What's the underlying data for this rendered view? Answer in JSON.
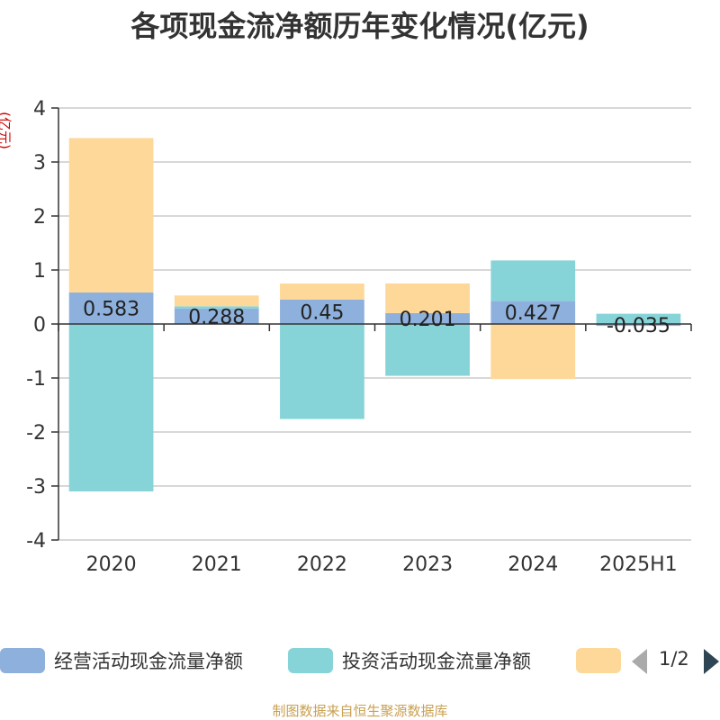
{
  "chart_data": {
    "type": "bar",
    "title": "各项现金流净额历年变化情况(亿元)",
    "ylabel": "(亿元)",
    "categories": [
      "2020",
      "2021",
      "2022",
      "2023",
      "2024",
      "2025H1"
    ],
    "ylim": [
      -4,
      4
    ],
    "yticks": [
      4,
      3,
      2,
      1,
      0,
      -1,
      -2,
      -3,
      -4
    ],
    "stacked": true,
    "grid": true,
    "series": [
      {
        "name": "经营活动现金流量净额",
        "color": "#8eb0dc",
        "values": [
          0.583,
          0.288,
          0.45,
          0.201,
          0.427,
          -0.035
        ],
        "labels": [
          "0.583",
          "0.288",
          "0.45",
          "0.201",
          "0.427",
          "-0.035"
        ]
      },
      {
        "name": "投资活动现金流量净额",
        "color": "#86d4d8",
        "values": [
          -3.1,
          0.04,
          -1.76,
          -0.96,
          0.75,
          0.19
        ]
      },
      {
        "name": "",
        "color": "#fdd899",
        "values": [
          2.86,
          0.2,
          0.3,
          0.55,
          -1.02,
          0.0
        ]
      }
    ],
    "legend": {
      "position": "bottom",
      "page": "1/2"
    }
  },
  "source": "制图数据来自恒生聚源数据库"
}
